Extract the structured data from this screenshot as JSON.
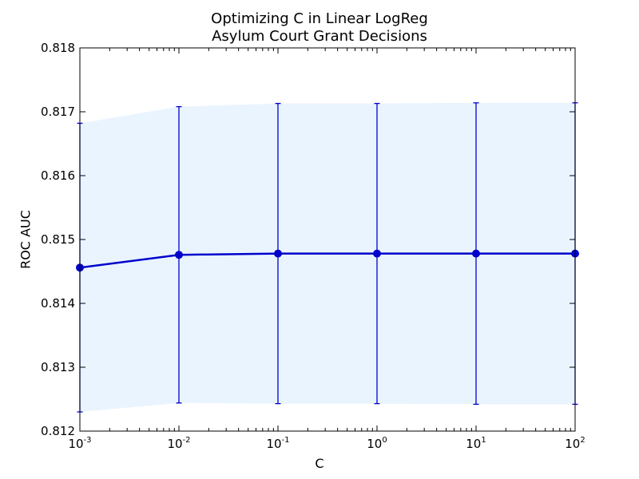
{
  "chart_data": {
    "type": "line",
    "title": "Optimizing C in Linear LogReg",
    "subtitle": "Asylum Court Grant Decisions",
    "xlabel": "C",
    "ylabel": "ROC AUC",
    "xscale": "log",
    "xlim": [
      0.001,
      100
    ],
    "ylim": [
      0.812,
      0.818
    ],
    "yticks": [
      0.812,
      0.813,
      0.814,
      0.815,
      0.816,
      0.817,
      0.818
    ],
    "ytick_labels": [
      "0.812",
      "0.813",
      "0.814",
      "0.815",
      "0.816",
      "0.817",
      "0.818"
    ],
    "xticks": [
      0.001,
      0.01,
      0.1,
      1,
      10,
      100
    ],
    "xtick_labels": [
      {
        "base": "10",
        "exp": "-3"
      },
      {
        "base": "10",
        "exp": "-2"
      },
      {
        "base": "10",
        "exp": "-1"
      },
      {
        "base": "10",
        "exp": "0"
      },
      {
        "base": "10",
        "exp": "1"
      },
      {
        "base": "10",
        "exp": "2"
      }
    ],
    "grid": false,
    "series": [
      {
        "x": [
          0.001,
          0.01,
          0.1,
          1,
          10,
          100
        ],
        "y": [
          0.81456,
          0.81476,
          0.81478,
          0.81478,
          0.81478,
          0.81478
        ],
        "yerr": [
          0.00226,
          0.00232,
          0.00235,
          0.00235,
          0.00236,
          0.00236
        ],
        "color": "#0000cc",
        "band_color": "#eaf4ff"
      }
    ]
  }
}
